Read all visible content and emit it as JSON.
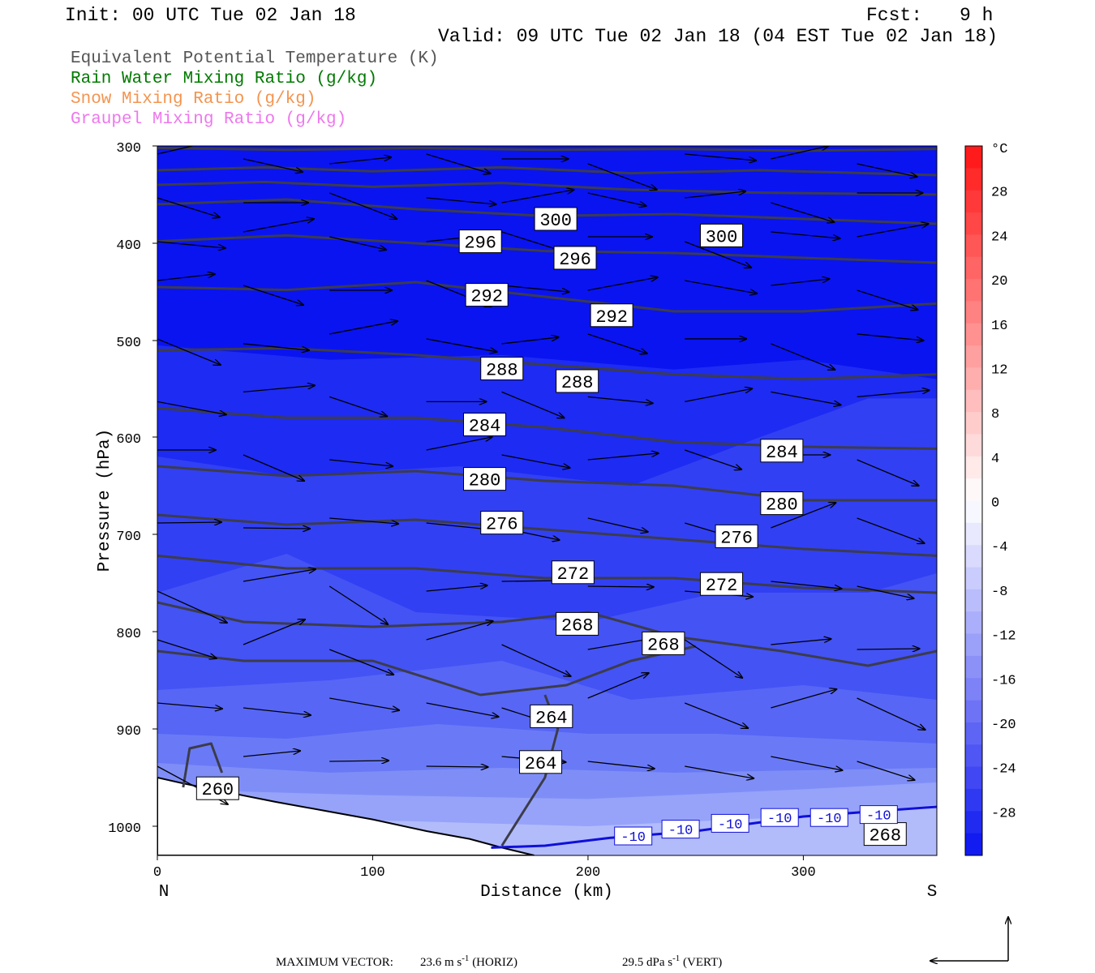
{
  "header": {
    "init": "Init: 00 UTC Tue 02 Jan 18",
    "fcst_label": "Fcst:",
    "fcst_value": "9 h",
    "valid": "Valid: 09 UTC Tue 02 Jan 18 (04 EST Tue 02 Jan 18)"
  },
  "fields": [
    {
      "label": "Equivalent Potential Temperature (K)",
      "color": "#555555"
    },
    {
      "label": "Rain Water Mixing Ratio (g/kg)",
      "color": "#007a00"
    },
    {
      "label": "Snow Mixing Ratio (g/kg)",
      "color": "#f4944f"
    },
    {
      "label": "Graupel Mixing Ratio (g/kg)",
      "color": "#ee77ee"
    }
  ],
  "chart_data": {
    "type": "heatmap",
    "xlabel": "Distance (km)",
    "ylabel": "Pressure (hPa)",
    "xlim": [
      0,
      362
    ],
    "ylim": [
      1030,
      300
    ],
    "y_scale": "log",
    "x_ticks": [
      0,
      100,
      200,
      300
    ],
    "y_ticks": [
      300,
      400,
      500,
      600,
      700,
      800,
      900,
      1000
    ],
    "x_end_labels": {
      "left": "N",
      "right": "S"
    },
    "colorbar": {
      "unit": "°C",
      "tick_labels": [
        "28",
        "24",
        "20",
        "16",
        "12",
        "8",
        "4",
        "0",
        "-4",
        "-8",
        "-12",
        "-16",
        "-20",
        "-24",
        "-28"
      ],
      "ticks": [
        28,
        24,
        20,
        16,
        12,
        8,
        4,
        0,
        -4,
        -8,
        -12,
        -16,
        -20,
        -24,
        -28
      ],
      "range": [
        -32,
        32
      ]
    },
    "theta_e_contours": [
      {
        "value": 300,
        "label": "300",
        "label_points": [
          [
            185,
            375
          ],
          [
            262,
            392
          ]
        ]
      },
      {
        "value": 296,
        "label": "296",
        "label_points": [
          [
            150,
            398
          ],
          [
            194,
            415
          ]
        ]
      },
      {
        "value": 292,
        "label": "292",
        "label_points": [
          [
            153,
            453
          ],
          [
            211,
            474
          ]
        ]
      },
      {
        "value": 288,
        "label": "288",
        "label_points": [
          [
            160,
            529
          ],
          [
            195,
            542
          ]
        ]
      },
      {
        "value": 284,
        "label": "284",
        "label_points": [
          [
            152,
            587
          ],
          [
            290,
            614
          ]
        ]
      },
      {
        "value": 280,
        "label": "280",
        "label_points": [
          [
            152,
            643
          ],
          [
            290,
            668
          ]
        ]
      },
      {
        "value": 276,
        "label": "276",
        "label_points": [
          [
            160,
            688
          ],
          [
            269,
            702
          ]
        ]
      },
      {
        "value": 272,
        "label": "272",
        "label_points": [
          [
            193,
            739
          ],
          [
            262,
            751
          ]
        ]
      },
      {
        "value": 268,
        "label": "268",
        "label_points": [
          [
            195,
            792
          ],
          [
            235,
            812
          ],
          [
            338,
            1008
          ]
        ]
      },
      {
        "value": 264,
        "label": "264",
        "label_points": [
          [
            183,
            887
          ],
          [
            178,
            934
          ]
        ]
      },
      {
        "value": 260,
        "label": "260",
        "label_points": [
          [
            28,
            961
          ]
        ]
      }
    ],
    "temperature_contour": {
      "value": -10,
      "label": "-10",
      "label_points": [
        [
          221,
          1010
        ],
        [
          243,
          1003
        ],
        [
          266,
          997
        ],
        [
          289,
          991
        ],
        [
          312,
          991
        ],
        [
          335,
          988
        ]
      ]
    },
    "vectors": {
      "max_horizontal": "23.6 m s",
      "max_horizontal_unit_suffix": "(HORIZ)",
      "max_vertical": "29.5 dPa s",
      "max_vertical_unit_suffix": "(VERT)",
      "footer_label": "MAXIMUM VECTOR:"
    }
  }
}
